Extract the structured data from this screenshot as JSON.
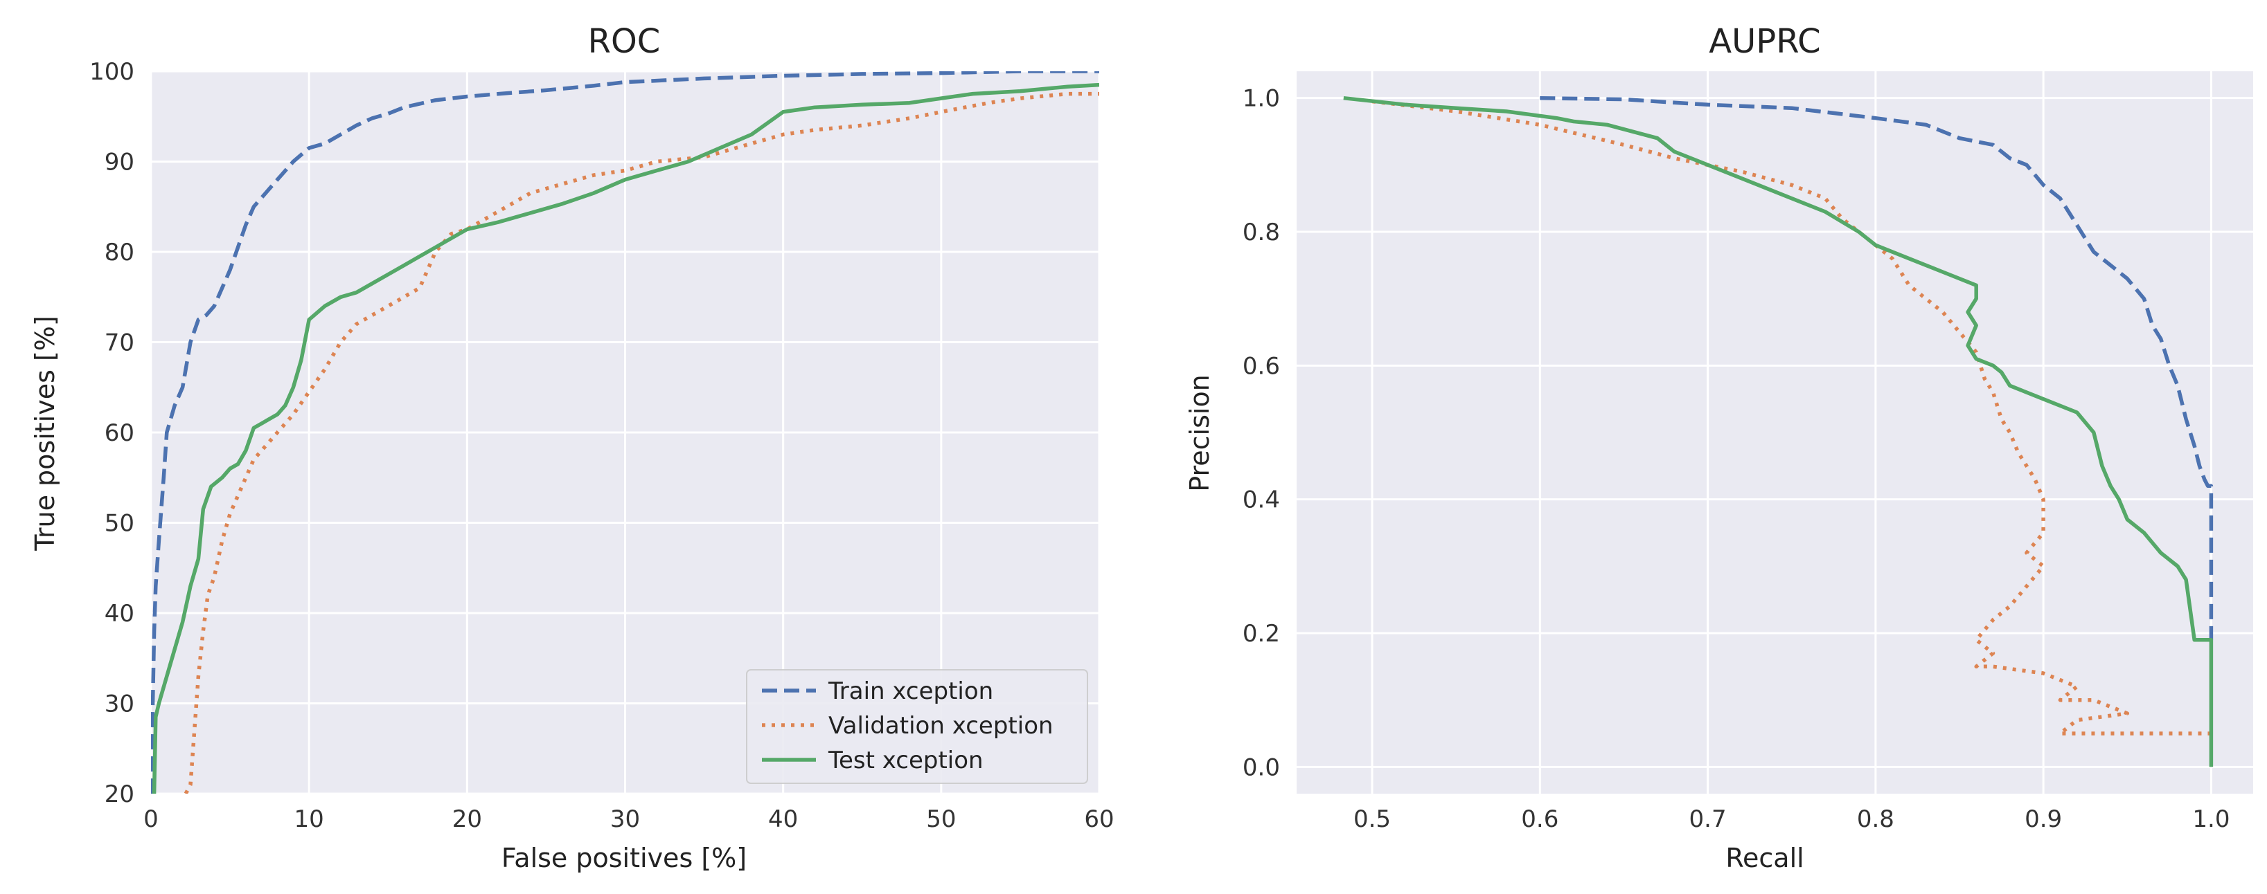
{
  "chart_data": [
    {
      "type": "line",
      "title": "ROC",
      "xlabel": "False positives [%]",
      "ylabel": "True positives [%]",
      "xlim": [
        0,
        60
      ],
      "ylim": [
        20,
        100
      ],
      "xticks": [
        0,
        10,
        20,
        30,
        40,
        50,
        60
      ],
      "yticks": [
        20,
        30,
        40,
        50,
        60,
        70,
        80,
        90,
        100
      ],
      "grid": true,
      "legend_position": "bottom-right",
      "series": [
        {
          "name": "Train xception",
          "color": "#4c72b0",
          "style": "dashed",
          "x": [
            0,
            0.2,
            0.3,
            0.5,
            0.8,
            1.0,
            1.5,
            2.0,
            2.5,
            3.0,
            3.5,
            4.0,
            4.5,
            5.0,
            5.5,
            6.0,
            6.5,
            7.0,
            7.5,
            8.0,
            9.0,
            10.0,
            11.0,
            12.0,
            13.0,
            14.0,
            15.0,
            16.0,
            18.0,
            20.0,
            22.0,
            25.0,
            28.0,
            30.0,
            35.0,
            40.0,
            45.0,
            50.0,
            55.0,
            60.0
          ],
          "y": [
            20,
            38,
            43,
            48,
            55,
            60,
            63,
            65,
            70,
            72.5,
            73,
            74,
            76,
            78,
            80.5,
            83,
            85,
            86,
            87,
            88,
            90,
            91.5,
            92,
            93,
            94,
            94.8,
            95.3,
            96,
            96.8,
            97.2,
            97.5,
            97.9,
            98.4,
            98.8,
            99.2,
            99.5,
            99.7,
            99.8,
            100,
            100
          ]
        },
        {
          "name": "Validation xception",
          "color": "#dd8452",
          "style": "dotted",
          "x": [
            2.2,
            2.5,
            3.0,
            3.3,
            3.6,
            4.0,
            4.5,
            5.0,
            5.5,
            6.0,
            6.5,
            7.0,
            8.0,
            9.0,
            10.0,
            11.0,
            12.0,
            13.0,
            14.0,
            15.0,
            16.0,
            17.0,
            18.0,
            19.0,
            20.0,
            22.0,
            24.0,
            26.0,
            28.0,
            30.0,
            32.0,
            35.0,
            38.0,
            40.0,
            42.0,
            45.0,
            48.0,
            50.0,
            53.0,
            55.0,
            58.0,
            60.0
          ],
          "y": [
            20,
            21,
            33,
            38,
            42,
            44,
            48,
            51,
            53,
            55,
            57,
            58,
            60,
            62,
            64.5,
            67,
            70,
            72,
            73,
            74,
            75,
            76,
            80,
            82,
            82.5,
            84.5,
            86.5,
            87.5,
            88.5,
            89,
            90,
            90.5,
            92,
            93,
            93.5,
            94,
            94.8,
            95.5,
            96.5,
            97,
            97.5,
            97.5
          ]
        },
        {
          "name": "Test xception",
          "color": "#55a868",
          "style": "solid",
          "x": [
            0.2,
            0.3,
            0.5,
            1.0,
            1.5,
            2.0,
            2.5,
            3.0,
            3.3,
            3.8,
            4.5,
            5.0,
            5.5,
            6.0,
            6.5,
            7.0,
            7.5,
            8.0,
            8.5,
            9.0,
            9.5,
            10.0,
            11.0,
            12.0,
            13.0,
            14.0,
            15.0,
            16.0,
            17.0,
            18.0,
            19.0,
            20.0,
            22.0,
            24.0,
            26.0,
            28.0,
            30.0,
            32.0,
            34.0,
            36.0,
            38.0,
            40.0,
            42.0,
            45.0,
            48.0,
            50.0,
            52.0,
            55.0,
            58.0,
            60.0
          ],
          "y": [
            20,
            28.5,
            30,
            33,
            36,
            39,
            43,
            46,
            51.5,
            54,
            55,
            56,
            56.5,
            58,
            60.5,
            61,
            61.5,
            62,
            63,
            65,
            68,
            72.5,
            74,
            75,
            75.5,
            76.5,
            77.5,
            78.5,
            79.5,
            80.5,
            81.5,
            82.5,
            83.3,
            84.3,
            85.3,
            86.5,
            88,
            89,
            90,
            91.5,
            93,
            95.5,
            96,
            96.3,
            96.5,
            97,
            97.5,
            97.8,
            98.3,
            98.5
          ]
        }
      ]
    },
    {
      "type": "line",
      "title": "AUPRC",
      "xlabel": "Recall",
      "ylabel": "Precision",
      "xlim": [
        0.455,
        1.025
      ],
      "ylim": [
        -0.04,
        1.04
      ],
      "xticks": [
        "0.5",
        "0.6",
        "0.7",
        "0.8",
        "0.9",
        "1.0"
      ],
      "yticks": [
        "0.0",
        "0.2",
        "0.4",
        "0.6",
        "0.8",
        "1.0"
      ],
      "grid": true,
      "series": [
        {
          "name": "Train xception",
          "color": "#4c72b0",
          "style": "dashed",
          "x": [
            0.6,
            0.65,
            0.7,
            0.75,
            0.8,
            0.83,
            0.85,
            0.87,
            0.88,
            0.89,
            0.9,
            0.91,
            0.92,
            0.93,
            0.94,
            0.95,
            0.96,
            0.965,
            0.97,
            0.975,
            0.98,
            0.985,
            0.99,
            0.993,
            0.996,
            0.998,
            1.0,
            1.0
          ],
          "y": [
            1.0,
            0.998,
            0.99,
            0.985,
            0.97,
            0.96,
            0.94,
            0.93,
            0.91,
            0.9,
            0.87,
            0.85,
            0.81,
            0.77,
            0.75,
            0.73,
            0.7,
            0.66,
            0.64,
            0.6,
            0.57,
            0.52,
            0.48,
            0.45,
            0.43,
            0.42,
            0.42,
            0.19
          ]
        },
        {
          "name": "Validation xception",
          "color": "#dd8452",
          "style": "dotted",
          "x": [
            0.5,
            0.55,
            0.6,
            0.65,
            0.68,
            0.7,
            0.72,
            0.75,
            0.77,
            0.78,
            0.79,
            0.8,
            0.81,
            0.82,
            0.83,
            0.84,
            0.85,
            0.86,
            0.865,
            0.87,
            0.875,
            0.88,
            0.885,
            0.89,
            0.895,
            0.9,
            0.9,
            0.89,
            0.9,
            0.89,
            0.88,
            0.87,
            0.86,
            0.87,
            0.86,
            0.87,
            0.9,
            0.92,
            0.91,
            0.93,
            0.95,
            0.92,
            0.91,
            1.0
          ],
          "y": [
            0.995,
            0.98,
            0.96,
            0.93,
            0.91,
            0.9,
            0.89,
            0.87,
            0.85,
            0.82,
            0.8,
            0.78,
            0.76,
            0.72,
            0.7,
            0.68,
            0.65,
            0.62,
            0.58,
            0.56,
            0.52,
            0.5,
            0.47,
            0.45,
            0.43,
            0.4,
            0.35,
            0.32,
            0.3,
            0.27,
            0.24,
            0.22,
            0.19,
            0.17,
            0.15,
            0.15,
            0.14,
            0.12,
            0.1,
            0.1,
            0.08,
            0.07,
            0.05,
            0.05
          ]
        },
        {
          "name": "Test xception",
          "color": "#55a868",
          "style": "solid",
          "x": [
            0.483,
            0.52,
            0.55,
            0.58,
            0.61,
            0.62,
            0.64,
            0.67,
            0.68,
            0.7,
            0.73,
            0.75,
            0.77,
            0.79,
            0.8,
            0.82,
            0.84,
            0.86,
            0.86,
            0.855,
            0.86,
            0.855,
            0.86,
            0.87,
            0.875,
            0.88,
            0.9,
            0.92,
            0.93,
            0.935,
            0.94,
            0.945,
            0.95,
            0.96,
            0.97,
            0.98,
            0.985,
            0.99,
            1.0,
            1.0
          ],
          "y": [
            1.0,
            0.99,
            0.985,
            0.98,
            0.97,
            0.965,
            0.96,
            0.94,
            0.92,
            0.9,
            0.87,
            0.85,
            0.83,
            0.8,
            0.78,
            0.76,
            0.74,
            0.72,
            0.7,
            0.68,
            0.66,
            0.63,
            0.61,
            0.6,
            0.59,
            0.57,
            0.55,
            0.53,
            0.5,
            0.45,
            0.42,
            0.4,
            0.37,
            0.35,
            0.32,
            0.3,
            0.28,
            0.19,
            0.19,
            0.0
          ]
        }
      ]
    }
  ]
}
